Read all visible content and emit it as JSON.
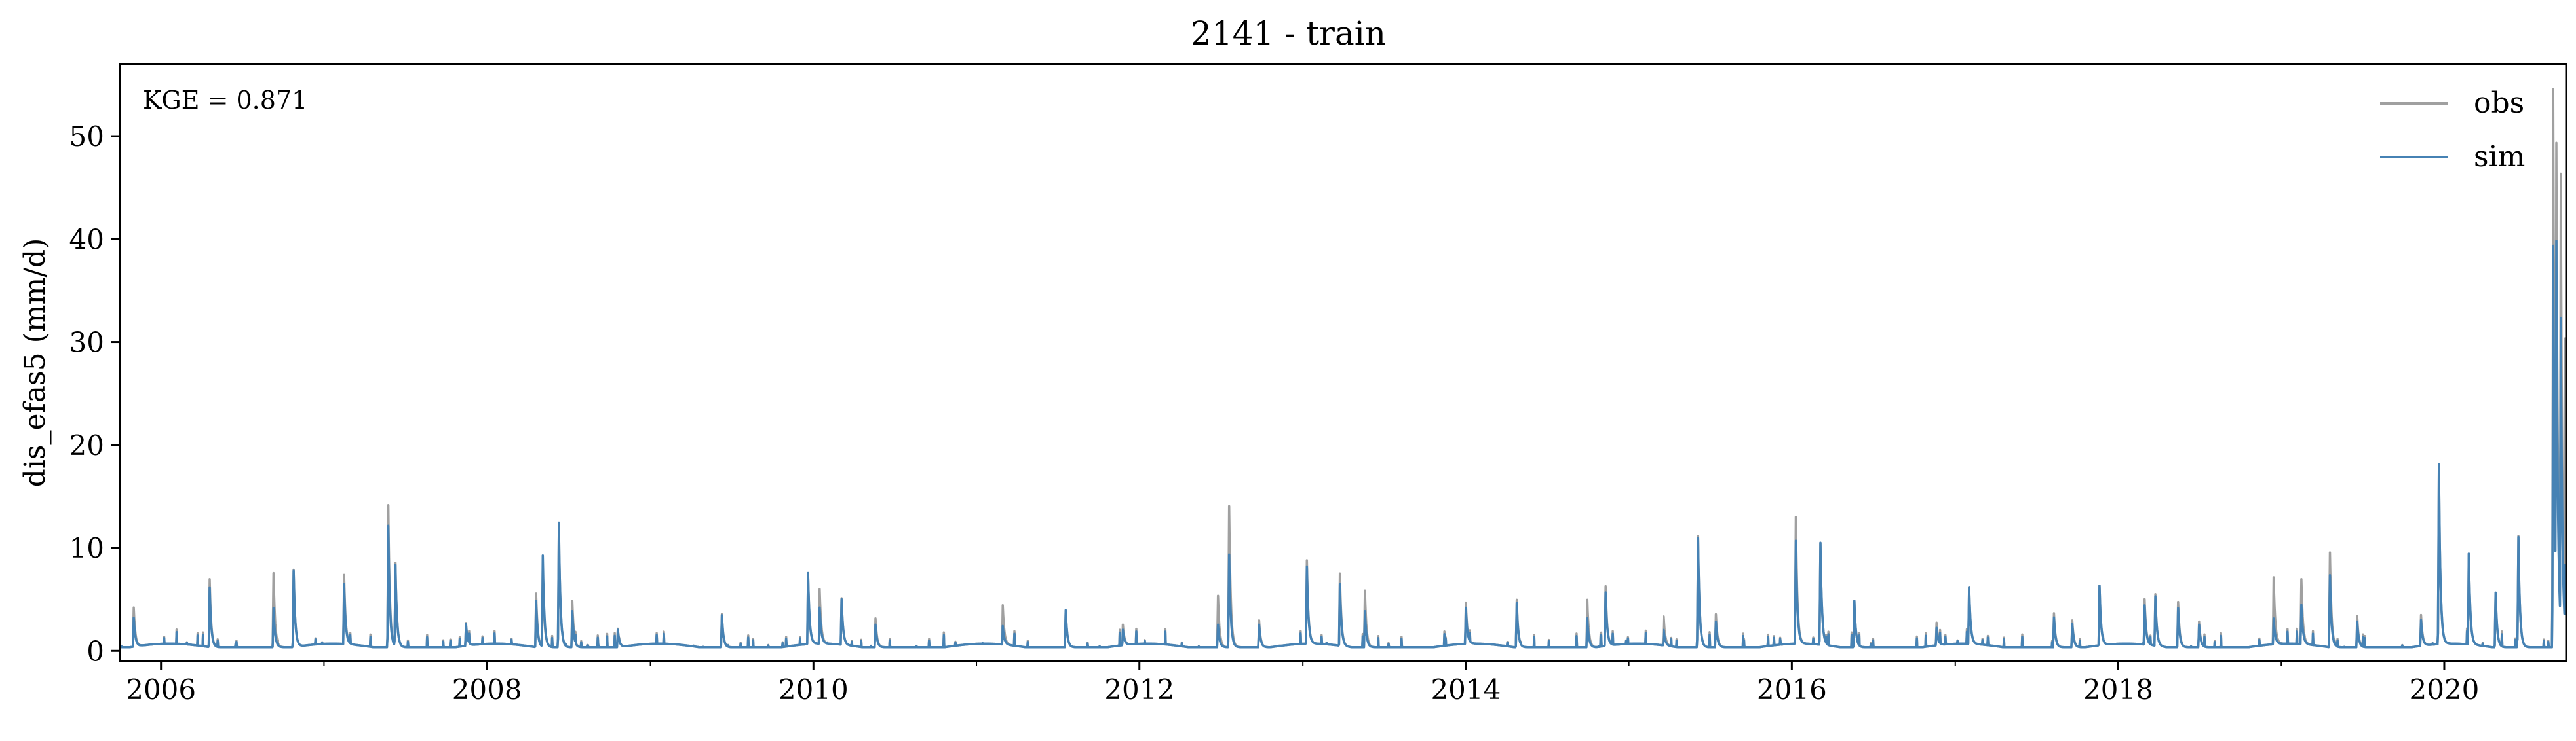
{
  "chart_data": {
    "type": "line",
    "title": "2141 - train",
    "xlabel": "",
    "ylabel": "dis_efas5 (mm/d)",
    "annotation": "KGE = 0.871",
    "xlim": [
      "2005-10-01",
      "2020-09-30"
    ],
    "ylim": [
      -1,
      57
    ],
    "x_ticks": [
      "2006",
      "2008",
      "2010",
      "2012",
      "2014",
      "2016",
      "2018",
      "2020"
    ],
    "y_ticks": [
      "0",
      "10",
      "20",
      "30",
      "40",
      "50"
    ],
    "legend_position": "top-right",
    "grid": false,
    "series": [
      {
        "name": "obs",
        "color": "#a0a0a0",
        "peaks": [
          [
            "2005-11-01",
            3.8
          ],
          [
            "2006-04-20",
            6.6
          ],
          [
            "2006-09-10",
            7.2
          ],
          [
            "2006-10-25",
            7.5
          ],
          [
            "2007-02-15",
            6.7
          ],
          [
            "2007-05-25",
            13.8
          ],
          [
            "2007-06-10",
            8.2
          ],
          [
            "2007-11-15",
            2.2
          ],
          [
            "2008-04-20",
            5.2
          ],
          [
            "2008-05-05",
            7.8
          ],
          [
            "2008-06-10",
            12.0
          ],
          [
            "2008-07-10",
            4.5
          ],
          [
            "2008-10-20",
            1.8
          ],
          [
            "2009-06-10",
            3.2
          ],
          [
            "2009-12-20",
            6.8
          ],
          [
            "2010-01-15",
            5.3
          ],
          [
            "2010-03-05",
            4.5
          ],
          [
            "2010-05-20",
            2.8
          ],
          [
            "2011-03-01",
            3.8
          ],
          [
            "2011-07-20",
            3.5
          ],
          [
            "2011-11-25",
            2.0
          ],
          [
            "2012-06-25",
            5.0
          ],
          [
            "2012-07-20",
            13.7
          ],
          [
            "2012-09-25",
            2.6
          ],
          [
            "2013-01-10",
            8.1
          ],
          [
            "2013-03-25",
            7.0
          ],
          [
            "2013-05-20",
            5.5
          ],
          [
            "2014-01-01",
            4.0
          ],
          [
            "2014-04-25",
            4.6
          ],
          [
            "2014-09-30",
            4.6
          ],
          [
            "2014-11-10",
            5.8
          ],
          [
            "2015-03-20",
            2.8
          ],
          [
            "2015-06-05",
            10.8
          ],
          [
            "2015-07-15",
            3.2
          ],
          [
            "2016-01-10",
            12.3
          ],
          [
            "2016-03-05",
            9.9
          ],
          [
            "2016-05-20",
            4.5
          ],
          [
            "2016-11-20",
            2.2
          ],
          [
            "2017-02-01",
            5.5
          ],
          [
            "2017-08-10",
            3.3
          ],
          [
            "2017-09-20",
            2.6
          ],
          [
            "2017-11-20",
            5.8
          ],
          [
            "2018-03-01",
            4.4
          ],
          [
            "2018-03-25",
            5.0
          ],
          [
            "2018-05-15",
            4.4
          ],
          [
            "2018-07-01",
            2.5
          ],
          [
            "2018-12-15",
            6.5
          ],
          [
            "2019-02-15",
            6.3
          ],
          [
            "2019-04-20",
            9.2
          ],
          [
            "2019-06-20",
            3.0
          ],
          [
            "2019-11-10",
            3.0
          ],
          [
            "2019-12-20",
            17.3
          ],
          [
            "2020-02-25",
            8.8
          ],
          [
            "2020-04-25",
            5.0
          ],
          [
            "2020-06-15",
            10.8
          ],
          [
            "2020-09-01",
            54.2
          ],
          [
            "2020-09-08",
            49.0
          ],
          [
            "2020-09-18",
            46.0
          ],
          [
            "2020-09-28",
            30.0
          ]
        ]
      },
      {
        "name": "sim",
        "color": "#4682b4",
        "peaks": [
          [
            "2005-11-01",
            2.8
          ],
          [
            "2006-04-20",
            5.8
          ],
          [
            "2006-09-10",
            3.8
          ],
          [
            "2006-10-25",
            7.4
          ],
          [
            "2007-02-15",
            5.8
          ],
          [
            "2007-05-25",
            11.8
          ],
          [
            "2007-06-10",
            8.0
          ],
          [
            "2007-11-15",
            2.1
          ],
          [
            "2008-04-20",
            4.5
          ],
          [
            "2008-05-05",
            8.9
          ],
          [
            "2008-06-10",
            12.1
          ],
          [
            "2008-07-10",
            3.5
          ],
          [
            "2008-10-20",
            1.7
          ],
          [
            "2009-06-10",
            3.1
          ],
          [
            "2009-12-20",
            6.9
          ],
          [
            "2010-01-15",
            3.5
          ],
          [
            "2010-03-05",
            4.4
          ],
          [
            "2010-05-20",
            2.2
          ],
          [
            "2011-03-01",
            1.8
          ],
          [
            "2011-07-20",
            3.6
          ],
          [
            "2011-11-25",
            1.5
          ],
          [
            "2012-06-25",
            2.2
          ],
          [
            "2012-07-20",
            9.0
          ],
          [
            "2012-09-25",
            2.2
          ],
          [
            "2013-01-10",
            7.5
          ],
          [
            "2013-03-25",
            6.0
          ],
          [
            "2013-05-20",
            3.5
          ],
          [
            "2014-01-01",
            3.5
          ],
          [
            "2014-04-25",
            4.3
          ],
          [
            "2014-09-30",
            2.8
          ],
          [
            "2014-11-10",
            5.2
          ],
          [
            "2015-03-20",
            1.5
          ],
          [
            "2015-06-05",
            10.6
          ],
          [
            "2015-07-15",
            2.5
          ],
          [
            "2016-01-10",
            10.0
          ],
          [
            "2016-03-05",
            9.9
          ],
          [
            "2016-05-20",
            4.5
          ],
          [
            "2016-11-20",
            1.7
          ],
          [
            "2017-02-01",
            5.5
          ],
          [
            "2017-08-10",
            2.9
          ],
          [
            "2017-09-20",
            2.3
          ],
          [
            "2017-11-20",
            5.8
          ],
          [
            "2018-03-01",
            3.8
          ],
          [
            "2018-03-25",
            4.8
          ],
          [
            "2018-05-15",
            3.8
          ],
          [
            "2018-07-01",
            2.2
          ],
          [
            "2018-12-15",
            2.5
          ],
          [
            "2019-02-15",
            3.8
          ],
          [
            "2019-04-20",
            7.0
          ],
          [
            "2019-06-20",
            2.5
          ],
          [
            "2019-11-10",
            2.5
          ],
          [
            "2019-12-20",
            17.5
          ],
          [
            "2020-02-25",
            8.8
          ],
          [
            "2020-04-25",
            5.3
          ],
          [
            "2020-06-15",
            10.7
          ],
          [
            "2020-09-01",
            39.0
          ],
          [
            "2020-09-08",
            39.5
          ],
          [
            "2020-09-18",
            32.0
          ],
          [
            "2020-09-28",
            8.0
          ]
        ]
      }
    ]
  }
}
